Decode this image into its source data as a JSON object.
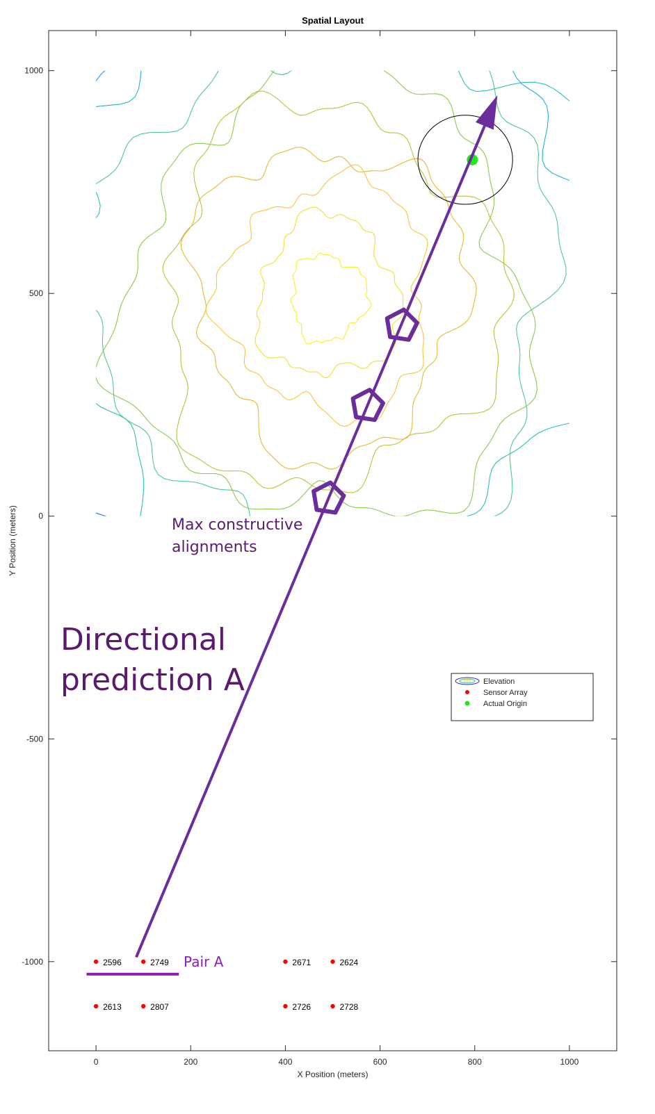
{
  "chart_data": {
    "type": "scatter",
    "title": "Spatial Layout",
    "xlabel": "X Position (meters)",
    "ylabel": "Y Position (meters)",
    "xlim": [
      -100,
      1100
    ],
    "ylim": [
      -1200,
      1090
    ],
    "xticks": [
      0,
      200,
      400,
      600,
      800,
      1000
    ],
    "yticks": [
      -1000,
      -500,
      0,
      500,
      1000
    ],
    "xtick_labels": [
      "0",
      "200",
      "400",
      "600",
      "800",
      "1000"
    ],
    "ytick_labels": [
      "-1000",
      "-500",
      "0",
      "500",
      "1000"
    ],
    "grid": false,
    "legend": {
      "placement": "right",
      "entries": [
        "Elevation",
        "Sensor Array",
        "Actual Origin"
      ]
    },
    "contour": {
      "name": "Elevation",
      "x_range": [
        0,
        1000
      ],
      "y_range": [
        0,
        1000
      ],
      "peak": [
        490,
        490
      ],
      "levels": 13,
      "colors": [
        "#3e26a8",
        "#4747e3",
        "#2f74f5",
        "#2e94f3",
        "#1eb2d8",
        "#2ac1b5",
        "#4bcb8f",
        "#8cca4f",
        "#bfc03a",
        "#e6b933",
        "#fac43d",
        "#f5df2c",
        "#f5f21e"
      ]
    },
    "sensors": {
      "name": "Sensor Array",
      "color": "#ff0000",
      "points": [
        {
          "x": 0,
          "y": -1000,
          "label": "2596"
        },
        {
          "x": 100,
          "y": -1000,
          "label": "2749"
        },
        {
          "x": 400,
          "y": -1000,
          "label": "2671"
        },
        {
          "x": 500,
          "y": -1000,
          "label": "2624"
        },
        {
          "x": 0,
          "y": -1100,
          "label": "2613"
        },
        {
          "x": 100,
          "y": -1100,
          "label": "2807"
        },
        {
          "x": 400,
          "y": -1100,
          "label": "2726"
        },
        {
          "x": 500,
          "y": -1100,
          "label": "2728"
        }
      ]
    },
    "origin": {
      "name": "Actual Origin",
      "color": "#22e61e",
      "x": 795,
      "y": 800,
      "circle_radius": 100
    },
    "annotations": {
      "color": "#5b1a6e",
      "arrow_color": "#6a2d9a",
      "arrow_from": [
        85,
        -990
      ],
      "arrow_to": [
        848,
        945
      ],
      "pentagons": [
        [
          645,
          428
        ],
        [
          573,
          248
        ],
        [
          490,
          40
        ]
      ],
      "pair_bar": {
        "x": [
          -20,
          175
        ],
        "y": -1028
      },
      "pair_label": {
        "text": "Pair A",
        "x": 185,
        "y": -1000
      },
      "max_label": [
        "Max constructive",
        "alignments"
      ],
      "max_label_pos": [
        160,
        -30
      ],
      "prediction_label": [
        "Directional",
        "prediction A"
      ],
      "prediction_label_pos": [
        -75,
        -300
      ]
    }
  }
}
